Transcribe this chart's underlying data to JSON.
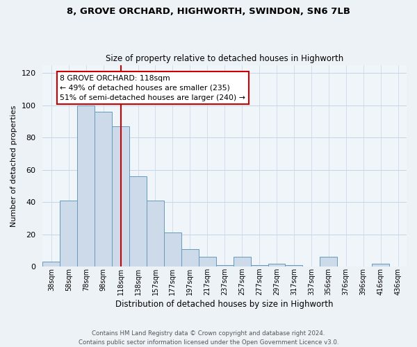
{
  "title": "8, GROVE ORCHARD, HIGHWORTH, SWINDON, SN6 7LB",
  "subtitle": "Size of property relative to detached houses in Highworth",
  "xlabel": "Distribution of detached houses by size in Highworth",
  "ylabel": "Number of detached properties",
  "bin_labels": [
    "38sqm",
    "58sqm",
    "78sqm",
    "98sqm",
    "118sqm",
    "138sqm",
    "157sqm",
    "177sqm",
    "197sqm",
    "217sqm",
    "237sqm",
    "257sqm",
    "277sqm",
    "297sqm",
    "317sqm",
    "337sqm",
    "356sqm",
    "376sqm",
    "396sqm",
    "416sqm",
    "436sqm"
  ],
  "bar_values": [
    3,
    41,
    100,
    96,
    87,
    56,
    41,
    21,
    11,
    6,
    1,
    6,
    1,
    2,
    1,
    0,
    6,
    0,
    0,
    2,
    0
  ],
  "bar_color": "#ccdaea",
  "bar_edge_color": "#6699bb",
  "redline_index": 4,
  "annotation_text": "8 GROVE ORCHARD: 118sqm\n← 49% of detached houses are smaller (235)\n51% of semi-detached houses are larger (240) →",
  "annotation_box_color": "#ffffff",
  "annotation_box_edge_color": "#cc0000",
  "ylim": [
    0,
    125
  ],
  "yticks": [
    0,
    20,
    40,
    60,
    80,
    100,
    120
  ],
  "footer_text": "Contains HM Land Registry data © Crown copyright and database right 2024.\nContains public sector information licensed under the Open Government Licence v3.0.",
  "bg_color": "#edf2f7",
  "plot_bg_color": "#f0f5fa",
  "grid_color": "#c5d5e5"
}
